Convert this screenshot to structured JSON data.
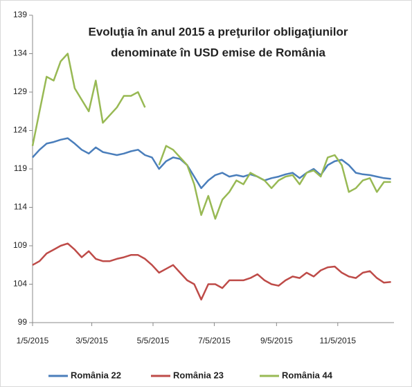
{
  "chart_data": {
    "type": "line",
    "title": [
      "Evoluţia în anul 2015 a preţurilor obligaţiunilor",
      "denominate în USD emise de România"
    ],
    "x": [
      "1/5/2015",
      "1/12/2015",
      "1/19/2015",
      "1/26/2015",
      "2/2/2015",
      "2/9/2015",
      "2/16/2015",
      "2/23/2015",
      "3/2/2015",
      "3/9/2015",
      "3/16/2015",
      "3/23/2015",
      "3/30/2015",
      "4/6/2015",
      "4/13/2015",
      "4/20/2015",
      "4/27/2015",
      "5/4/2015",
      "5/11/2015",
      "5/18/2015",
      "5/25/2015",
      "6/1/2015",
      "6/8/2015",
      "6/15/2015",
      "6/22/2015",
      "6/29/2015",
      "7/6/2015",
      "7/13/2015",
      "7/20/2015",
      "7/27/2015",
      "8/3/2015",
      "8/10/2015",
      "8/17/2015",
      "8/24/2015",
      "8/31/2015",
      "9/7/2015",
      "9/14/2015",
      "9/21/2015",
      "9/28/2015",
      "10/5/2015",
      "10/12/2015",
      "10/19/2015",
      "10/26/2015",
      "11/2/2015",
      "11/9/2015",
      "11/16/2015",
      "11/23/2015",
      "11/30/2015",
      "12/7/2015",
      "12/14/2015",
      "12/21/2015",
      "12/28/2015"
    ],
    "series": [
      {
        "name": "România 22",
        "color": "#4a7ebb",
        "values": [
          120.5,
          121.5,
          122.3,
          122.5,
          122.8,
          123,
          122.3,
          121.5,
          121,
          121.8,
          121.2,
          121,
          120.8,
          121,
          121.3,
          121.5,
          120.8,
          120.5,
          119,
          120,
          120.5,
          120.3,
          119.5,
          118,
          116.5,
          117.5,
          118.2,
          118.5,
          118,
          118.2,
          118,
          118.3,
          118,
          117.5,
          117.8,
          118,
          118.3,
          118.5,
          117.8,
          118.5,
          119,
          118.2,
          119.5,
          120,
          120.2,
          119.5,
          118.5,
          118.3,
          118.2,
          118,
          117.8,
          117.7
        ]
      },
      {
        "name": "România 23",
        "color": "#be4b48",
        "values": [
          106.5,
          107,
          108,
          108.5,
          109,
          109.3,
          108.5,
          107.5,
          108.3,
          107.3,
          107,
          107,
          107.3,
          107.5,
          107.8,
          107.8,
          107.3,
          106.5,
          105.5,
          106,
          106.5,
          105.5,
          104.5,
          104,
          102,
          104,
          104,
          103.5,
          104.5,
          104.5,
          104.5,
          104.8,
          105.3,
          104.5,
          104,
          103.8,
          104.5,
          105,
          104.8,
          105.5,
          105,
          105.8,
          106.2,
          106.3,
          105.5,
          105,
          104.8,
          105.5,
          105.7,
          104.8,
          104.2,
          104.3
        ]
      },
      {
        "name": "România 44",
        "color": "#98b954",
        "values": [
          122,
          126.5,
          131,
          130.5,
          133,
          134,
          129.5,
          128,
          126.5,
          130.5,
          125,
          126,
          127,
          128.5,
          128.5,
          129,
          127,
          null,
          119.5,
          122,
          121.5,
          120.5,
          119.5,
          117,
          113,
          115.5,
          112.5,
          115,
          116,
          117.5,
          117,
          118.5,
          118,
          117.5,
          116.5,
          117.5,
          118,
          118.2,
          117,
          118.5,
          118.8,
          118,
          120.5,
          120.8,
          119.5,
          116,
          116.5,
          117.5,
          117.8,
          116,
          117.3,
          117.3
        ]
      }
    ],
    "xlim": [
      "1/5/2015",
      "12/31/2015"
    ],
    "xticks": [
      "1/5/2015",
      "3/5/2015",
      "5/5/2015",
      "7/5/2015",
      "9/5/2015",
      "11/5/2015"
    ],
    "ylim": [
      99,
      139
    ],
    "yticks": [
      99,
      104,
      109,
      114,
      119,
      124,
      129,
      134,
      139
    ],
    "legend": "bottom"
  }
}
